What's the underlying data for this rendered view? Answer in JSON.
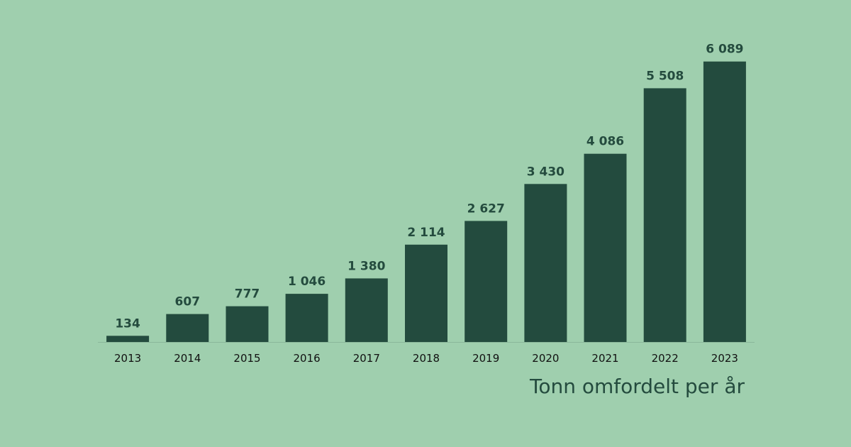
{
  "colors": {
    "background": "#9fcfae",
    "bar": "#234b3e",
    "axis": "#8ab79a",
    "label": "#244b3e",
    "tick": "#111111"
  },
  "chart_data": {
    "type": "bar",
    "title": "Tonn omfordelt per år",
    "xlabel": "",
    "ylabel": "",
    "grid": false,
    "ylim": [
      0,
      6500
    ],
    "categories": [
      "2013",
      "2014",
      "2015",
      "2016",
      "2017",
      "2018",
      "2019",
      "2020",
      "2021",
      "2022",
      "2023"
    ],
    "values": [
      134,
      607,
      777,
      1046,
      1380,
      2114,
      2627,
      3430,
      4086,
      5508,
      6089
    ],
    "data_labels": [
      "134",
      "607",
      "777",
      "1 046",
      "1 380",
      "2 114",
      "2 627",
      "3 430",
      "4 086",
      "5 508",
      "6 089"
    ]
  }
}
